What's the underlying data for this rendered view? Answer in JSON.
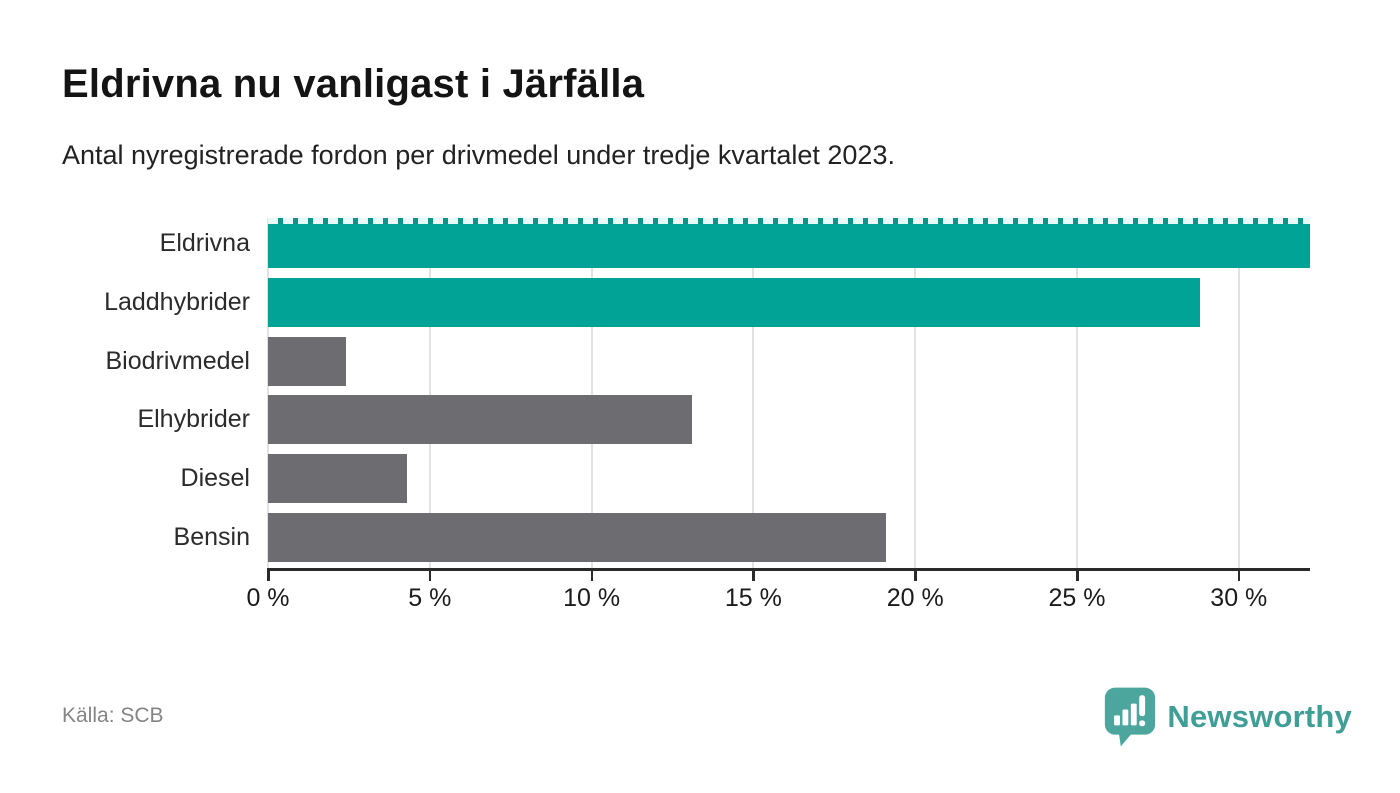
{
  "title": "Eldrivna nu vanligast i Järfälla",
  "subtitle": "Antal nyregistrerade fordon per drivmedel under tredje kvartalet 2023.",
  "source": "Källa: SCB",
  "brand": {
    "name": "Newsworthy",
    "icon": "newsworthy-speech-bubble-chart-icon",
    "color": "#3f9e96"
  },
  "colors": {
    "highlight_bar": "#00a396",
    "default_bar": "#6c6c71",
    "axis": "#2a2a2a",
    "gridline": "#e2e2e2",
    "clip_dash": "#e7faf8"
  },
  "chart_data": {
    "type": "bar",
    "orientation": "horizontal",
    "title": "Eldrivna nu vanligast i Järfälla",
    "subtitle": "Antal nyregistrerade fordon per drivmedel under tredje kvartalet 2023.",
    "categories": [
      "Eldrivna",
      "Laddhybrider",
      "Biodrivmedel",
      "Elhybrider",
      "Diesel",
      "Bensin"
    ],
    "values": [
      32.2,
      28.8,
      2.4,
      13.1,
      4.3,
      19.1
    ],
    "unit": "%",
    "bar_colors": [
      "#00a396",
      "#00a396",
      "#6c6c71",
      "#6c6c71",
      "#6c6c71",
      "#6c6c71"
    ],
    "clipped_categories": [
      "Eldrivna"
    ],
    "xlim": [
      0,
      32.2
    ],
    "x_ticks": [
      0,
      5,
      10,
      15,
      20,
      25,
      30
    ],
    "x_tick_labels": [
      "0 %",
      "5 %",
      "10 %",
      "15 %",
      "20 %",
      "25 %",
      "30 %"
    ],
    "grid": true,
    "legend": false,
    "xlabel": "",
    "ylabel": ""
  }
}
